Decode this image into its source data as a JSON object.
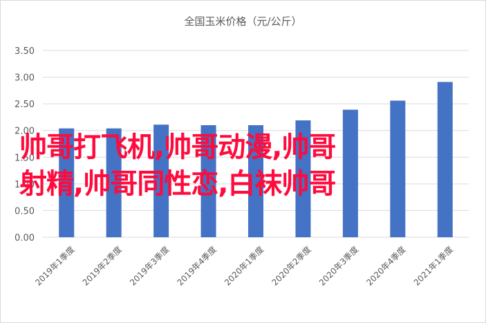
{
  "chart_data": {
    "type": "bar",
    "title": "全国玉米价格（元/公斤）",
    "xlabel": "",
    "ylabel": "",
    "categories": [
      "2019年1季度",
      "2019年2季度",
      "2019年3季度",
      "2019年4季度",
      "2020年1季度",
      "2020年2季度",
      "2020年3季度",
      "2020年4季度",
      "2021年1季度"
    ],
    "values": [
      2.04,
      2.04,
      2.11,
      2.1,
      2.1,
      2.19,
      2.39,
      2.56,
      2.91
    ],
    "ylim": [
      0,
      3.5
    ],
    "yticks": [
      "0.00",
      "0.50",
      "1.00",
      "1.50",
      "2.00",
      "2.50",
      "3.00",
      "3.50"
    ],
    "grid": true,
    "legend": "none",
    "bar_color": "#4472c4"
  },
  "overlay": {
    "line1": "帅哥打飞机,帅哥动漫,帅哥",
    "line2": "射精,帅哥同性恋,白袜帅哥",
    "color": "#ff0a3c"
  }
}
